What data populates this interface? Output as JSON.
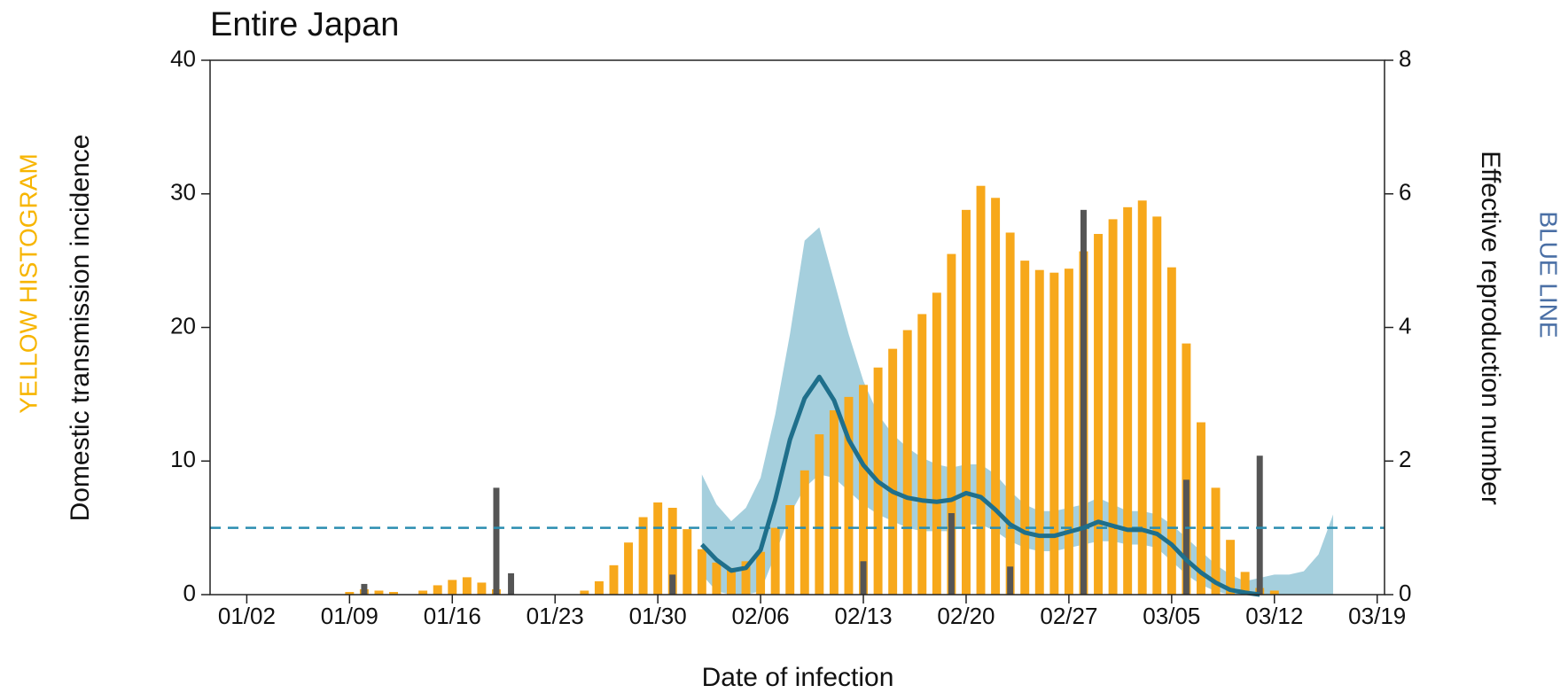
{
  "chart_data": {
    "type": "bar",
    "title": "Entire Japan",
    "x_label": "Date of infection",
    "y_label": "Domestic transmission incidence",
    "y2_label": "Effective reproduction number",
    "annotations": [
      "YELLOW HISTOGRAM",
      "BLUE LINE"
    ],
    "categories": [
      null,
      null,
      "01/02",
      null,
      null,
      null,
      null,
      null,
      null,
      "01/09",
      null,
      null,
      null,
      null,
      null,
      null,
      "01/16",
      null,
      null,
      null,
      null,
      null,
      null,
      "01/23",
      null,
      null,
      null,
      null,
      null,
      null,
      "01/30",
      null,
      null,
      null,
      null,
      null,
      null,
      "02/06",
      null,
      null,
      null,
      null,
      null,
      null,
      "02/13",
      null,
      null,
      null,
      null,
      null,
      null,
      "02/20",
      null,
      null,
      null,
      null,
      null,
      null,
      "02/27",
      null,
      null,
      null,
      null,
      null,
      null,
      "03/05",
      null,
      null,
      null,
      null,
      null,
      null,
      "03/12",
      null,
      null,
      null,
      null,
      null,
      null,
      "03/19"
    ],
    "series": [
      {
        "type": "bar",
        "color": "#f7a81b",
        "values": [
          0,
          0,
          0,
          0,
          0,
          0,
          0,
          0,
          0,
          0.2,
          0.4,
          0.3,
          0.2,
          0,
          0.3,
          0.7,
          1.1,
          1.3,
          0.9,
          0.4,
          0,
          0,
          0,
          0,
          0,
          0.3,
          1.0,
          2.2,
          3.9,
          5.8,
          6.9,
          6.5,
          4.9,
          3.4,
          2.4,
          2.0,
          2.5,
          3.2,
          5.0,
          6.7,
          9.3,
          12.0,
          13.8,
          14.8,
          15.7,
          17.0,
          18.4,
          19.8,
          21.0,
          22.6,
          25.5,
          28.8,
          30.6,
          29.7,
          27.1,
          25.0,
          24.3,
          24.1,
          24.4,
          25.7,
          27.0,
          28.1,
          29.0,
          29.5,
          28.3,
          24.5,
          18.8,
          12.9,
          8.0,
          4.1,
          1.7,
          0.5,
          0.3,
          0,
          0,
          0,
          0,
          0,
          0,
          0
        ]
      },
      {
        "type": "bar",
        "color": "#555555",
        "values": [
          0,
          0,
          0,
          0,
          0,
          0,
          0,
          0,
          0,
          0,
          0.8,
          0,
          0,
          0,
          0,
          0,
          0,
          0,
          0,
          8.0,
          1.6,
          0,
          0,
          0,
          0,
          0,
          0,
          0,
          0,
          0,
          0,
          1.5,
          0,
          0,
          0,
          0,
          0,
          0,
          0,
          0,
          0,
          0,
          0,
          0,
          2.5,
          0,
          0,
          0,
          0,
          0,
          6.1,
          0,
          0,
          0,
          2.1,
          0,
          0,
          0,
          0,
          28.8,
          0,
          0,
          0,
          0,
          0,
          0,
          8.6,
          0,
          0,
          0,
          0,
          10.4,
          0,
          0,
          0,
          0,
          0,
          0,
          0,
          0
        ]
      },
      {
        "type": "line",
        "axis": "y2",
        "color": "#1f6f8b",
        "values": [
          null,
          null,
          null,
          null,
          null,
          null,
          null,
          null,
          null,
          null,
          null,
          null,
          null,
          null,
          null,
          null,
          null,
          null,
          null,
          null,
          null,
          null,
          null,
          null,
          null,
          null,
          null,
          null,
          null,
          null,
          null,
          null,
          null,
          0.75,
          0.52,
          0.36,
          0.4,
          0.67,
          1.42,
          2.32,
          2.94,
          3.26,
          2.91,
          2.32,
          1.94,
          1.69,
          1.54,
          1.45,
          1.41,
          1.39,
          1.42,
          1.52,
          1.46,
          1.27,
          1.05,
          0.93,
          0.88,
          0.88,
          0.94,
          1.0,
          1.09,
          1.03,
          0.97,
          0.97,
          0.91,
          0.75,
          0.52,
          0.33,
          0.18,
          0.07,
          0.03,
          0.0,
          null,
          null,
          null,
          null,
          null,
          null,
          null,
          null
        ]
      }
    ],
    "band": {
      "axis": "y2",
      "color": "#8fc3d4",
      "lower": [
        null,
        null,
        null,
        null,
        null,
        null,
        null,
        null,
        null,
        null,
        null,
        null,
        null,
        null,
        null,
        null,
        null,
        null,
        null,
        null,
        null,
        null,
        null,
        null,
        null,
        null,
        null,
        null,
        null,
        null,
        null,
        null,
        null,
        0.3,
        0.05,
        0,
        0,
        0.05,
        0.6,
        1.2,
        1.6,
        1.8,
        1.75,
        1.55,
        1.35,
        1.2,
        1.1,
        1.0,
        0.95,
        0.95,
        0.95,
        1.05,
        1.05,
        0.95,
        0.8,
        0.7,
        0.65,
        0.65,
        0.7,
        0.75,
        0.8,
        0.8,
        0.75,
        0.75,
        0.7,
        0.5,
        0.3,
        0.15,
        0.05,
        0,
        0,
        0,
        0,
        0,
        0,
        0,
        0,
        null,
        null,
        null
      ],
      "upper": [
        null,
        null,
        null,
        null,
        null,
        null,
        null,
        null,
        null,
        null,
        null,
        null,
        null,
        null,
        null,
        null,
        null,
        null,
        null,
        null,
        null,
        null,
        null,
        null,
        null,
        null,
        null,
        null,
        null,
        null,
        null,
        null,
        null,
        1.8,
        1.35,
        1.1,
        1.3,
        1.75,
        2.7,
        3.9,
        5.3,
        5.5,
        4.7,
        3.9,
        3.2,
        2.7,
        2.4,
        2.2,
        2.05,
        1.95,
        1.9,
        1.95,
        1.95,
        1.8,
        1.55,
        1.35,
        1.25,
        1.25,
        1.3,
        1.35,
        1.45,
        1.35,
        1.25,
        1.25,
        1.2,
        1.05,
        0.85,
        0.65,
        0.45,
        0.3,
        0.2,
        0.25,
        0.3,
        0.3,
        0.35,
        0.6,
        1.2,
        null,
        null,
        null
      ]
    },
    "reference_line": {
      "axis": "y2",
      "value": 1,
      "color": "#2a8db0"
    },
    "ylim": [
      0,
      40
    ],
    "yticks": [
      0,
      10,
      20,
      30,
      40
    ],
    "y2lim": [
      0,
      8
    ],
    "y2ticks": [
      0,
      2,
      4,
      6,
      8
    ]
  }
}
